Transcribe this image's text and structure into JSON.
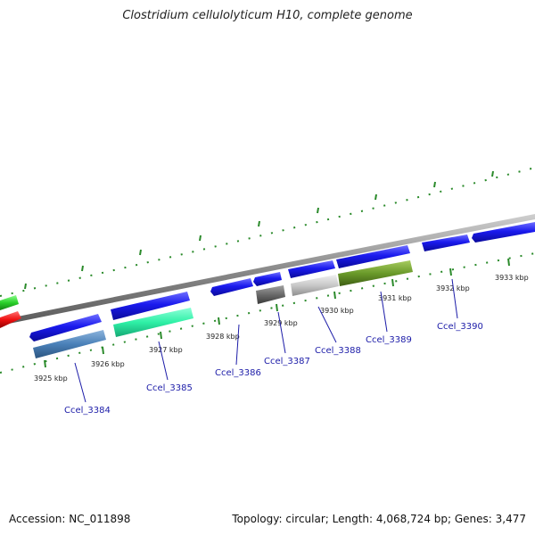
{
  "title": "Clostridium cellulolyticum H10, complete genome",
  "footer": {
    "accession": "Accession: NC_011898",
    "summary": "Topology: circular; Length: 4,068,724 bp; Genes: 3,477"
  },
  "colors": {
    "cds_forward": "#1a1aee",
    "backbone": "#8a8a8a",
    "tick": "#2a8a2a",
    "label_text": "#1c1ca8"
  },
  "ticks": [
    {
      "label": "3925 kbp"
    },
    {
      "label": "3926 kbp"
    },
    {
      "label": "3927 kbp"
    },
    {
      "label": "3928 kbp"
    },
    {
      "label": "3929 kbp"
    },
    {
      "label": "3930 kbp"
    },
    {
      "label": "3931 kbp"
    },
    {
      "label": "3932 kbp"
    },
    {
      "label": "3933 kbp"
    }
  ],
  "genes": [
    {
      "label": "Ccel_3384"
    },
    {
      "label": "Ccel_3385"
    },
    {
      "label": "Ccel_3386"
    },
    {
      "label": "Ccel_3387"
    },
    {
      "label": "Ccel_3388"
    },
    {
      "label": "Ccel_3389"
    },
    {
      "label": "Ccel_3390"
    }
  ]
}
